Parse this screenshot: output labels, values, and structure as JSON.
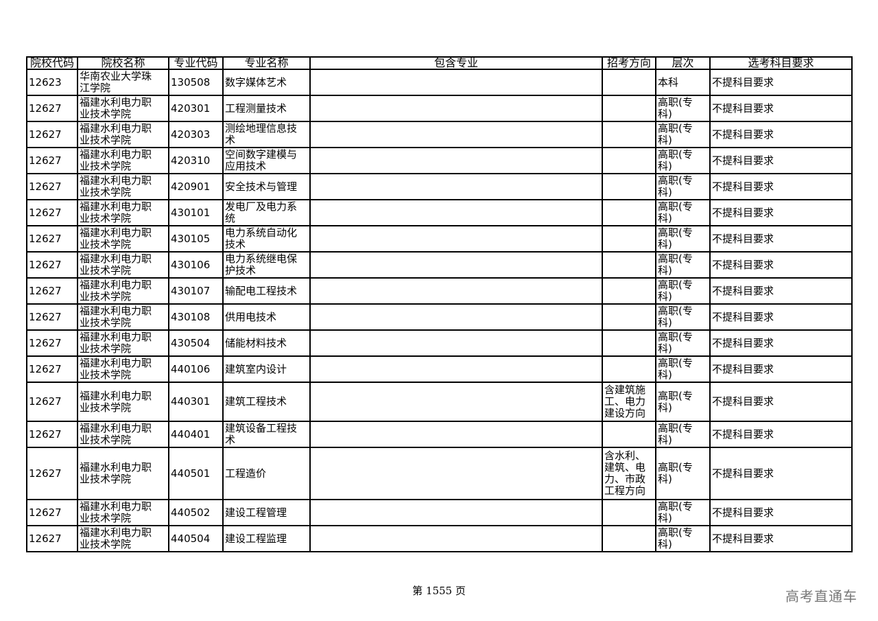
{
  "headers": [
    "院校代码",
    "院校名称",
    "专业代码",
    "专业名称",
    "包含专业",
    "招考方向",
    "层次",
    "选考科目要求"
  ],
  "rows": [
    {
      "code": "12623",
      "school": "华南农业大学珠\n江学院",
      "major_code": "130508",
      "major": "数字媒体艺术",
      "includes": "",
      "direction": "",
      "level": "本科",
      "req": "不提科目要求"
    },
    {
      "code": "12627",
      "school": "福建水利电力职\n业技术学院",
      "major_code": "420301",
      "major": "工程测量技术",
      "includes": "",
      "direction": "",
      "level": "高职(专\n科)",
      "req": "不提科目要求"
    },
    {
      "code": "12627",
      "school": "福建水利电力职\n业技术学院",
      "major_code": "420303",
      "major": "测绘地理信息技\n术",
      "includes": "",
      "direction": "",
      "level": "高职(专\n科)",
      "req": "不提科目要求"
    },
    {
      "code": "12627",
      "school": "福建水利电力职\n业技术学院",
      "major_code": "420310",
      "major": "空间数字建模与\n应用技术",
      "includes": "",
      "direction": "",
      "level": "高职(专\n科)",
      "req": "不提科目要求"
    },
    {
      "code": "12627",
      "school": "福建水利电力职\n业技术学院",
      "major_code": "420901",
      "major": "安全技术与管理",
      "includes": "",
      "direction": "",
      "level": "高职(专\n科)",
      "req": "不提科目要求"
    },
    {
      "code": "12627",
      "school": "福建水利电力职\n业技术学院",
      "major_code": "430101",
      "major": "发电厂及电力系\n统",
      "includes": "",
      "direction": "",
      "level": "高职(专\n科)",
      "req": "不提科目要求"
    },
    {
      "code": "12627",
      "school": "福建水利电力职\n业技术学院",
      "major_code": "430105",
      "major": "电力系统自动化\n技术",
      "includes": "",
      "direction": "",
      "level": "高职(专\n科)",
      "req": "不提科目要求"
    },
    {
      "code": "12627",
      "school": "福建水利电力职\n业技术学院",
      "major_code": "430106",
      "major": "电力系统继电保\n护技术",
      "includes": "",
      "direction": "",
      "level": "高职(专\n科)",
      "req": "不提科目要求"
    },
    {
      "code": "12627",
      "school": "福建水利电力职\n业技术学院",
      "major_code": "430107",
      "major": "输配电工程技术",
      "includes": "",
      "direction": "",
      "level": "高职(专\n科)",
      "req": "不提科目要求"
    },
    {
      "code": "12627",
      "school": "福建水利电力职\n业技术学院",
      "major_code": "430108",
      "major": "供用电技术",
      "includes": "",
      "direction": "",
      "level": "高职(专\n科)",
      "req": "不提科目要求"
    },
    {
      "code": "12627",
      "school": "福建水利电力职\n业技术学院",
      "major_code": "430504",
      "major": "储能材料技术",
      "includes": "",
      "direction": "",
      "level": "高职(专\n科)",
      "req": "不提科目要求"
    },
    {
      "code": "12627",
      "school": "福建水利电力职\n业技术学院",
      "major_code": "440106",
      "major": "建筑室内设计",
      "includes": "",
      "direction": "",
      "level": "高职(专\n科)",
      "req": "不提科目要求"
    },
    {
      "code": "12627",
      "school": "福建水利电力职\n业技术学院",
      "major_code": "440301",
      "major": "建筑工程技术",
      "includes": "",
      "direction": "含建筑施\n工、电力\n建设方向",
      "level": "高职(专\n科)",
      "req": "不提科目要求"
    },
    {
      "code": "12627",
      "school": "福建水利电力职\n业技术学院",
      "major_code": "440401",
      "major": "建筑设备工程技\n术",
      "includes": "",
      "direction": "",
      "level": "高职(专\n科)",
      "req": "不提科目要求"
    },
    {
      "code": "12627",
      "school": "福建水利电力职\n业技术学院",
      "major_code": "440501",
      "major": "工程造价",
      "includes": "",
      "direction": "含水利、\n建筑、电\n力、市政\n工程方向",
      "level": "高职(专\n科)",
      "req": "不提科目要求"
    },
    {
      "code": "12627",
      "school": "福建水利电力职\n业技术学院",
      "major_code": "440502",
      "major": "建设工程管理",
      "includes": "",
      "direction": "",
      "level": "高职(专\n科)",
      "req": "不提科目要求"
    },
    {
      "code": "12627",
      "school": "福建水利电力职\n业技术学院",
      "major_code": "440504",
      "major": "建设工程监理",
      "includes": "",
      "direction": "",
      "level": "高职(专\n科)",
      "req": "不提科目要求"
    }
  ],
  "footer": {
    "page": "第 1555 页"
  },
  "watermark": "高考直通车"
}
